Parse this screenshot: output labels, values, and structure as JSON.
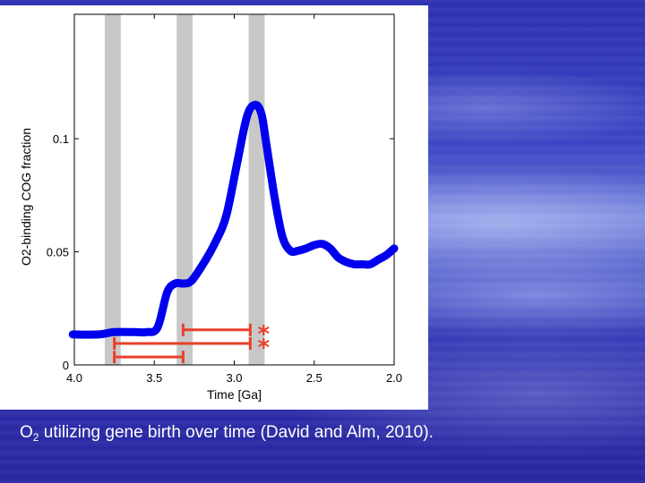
{
  "caption": {
    "prefix": "O",
    "subscript": "2",
    "text": " utilizing gene birth over time (David and Alm, 2010)."
  },
  "chart_data": {
    "type": "line",
    "title": "",
    "xlabel": "Time [Ga]",
    "ylabel": "O2-binding COG fraction",
    "xlim": [
      4.0,
      2.0
    ],
    "ylim": [
      0,
      0.155
    ],
    "x_reversed": true,
    "grid": false,
    "xticks": [
      {
        "value": 4.0,
        "label": "4.0"
      },
      {
        "value": 3.5,
        "label": "3.5"
      },
      {
        "value": 3.0,
        "label": "3.0"
      },
      {
        "value": 2.5,
        "label": "2.5"
      },
      {
        "value": 2.0,
        "label": "2.0"
      }
    ],
    "yticks": [
      {
        "value": 0,
        "label": "0"
      },
      {
        "value": 0.05,
        "label": "0.05"
      },
      {
        "value": 0.1,
        "label": "0.1"
      }
    ],
    "line_color": "#0000ee",
    "series": [
      {
        "x": [
          4.01,
          3.85,
          3.75,
          3.62,
          3.55,
          3.48,
          3.42,
          3.37,
          3.32,
          3.27,
          3.2,
          3.12,
          3.05,
          2.98,
          2.92,
          2.87,
          2.83,
          2.8,
          2.75,
          2.7,
          2.65,
          2.6,
          2.55,
          2.5,
          2.45,
          2.4,
          2.35,
          2.3,
          2.25,
          2.2,
          2.15,
          2.1,
          2.05,
          2.0
        ],
        "y": [
          0.0135,
          0.0135,
          0.0145,
          0.0145,
          0.0145,
          0.0165,
          0.032,
          0.036,
          0.036,
          0.037,
          0.044,
          0.054,
          0.066,
          0.09,
          0.11,
          0.115,
          0.111,
          0.098,
          0.075,
          0.057,
          0.0505,
          0.0505,
          0.0515,
          0.053,
          0.0535,
          0.0515,
          0.0475,
          0.0455,
          0.0445,
          0.0445,
          0.0445,
          0.0465,
          0.0485,
          0.0515
        ]
      }
    ],
    "shaded_bands": [
      {
        "x_from": 3.81,
        "x_to": 3.71
      },
      {
        "x_from": 3.36,
        "x_to": 3.26
      },
      {
        "x_from": 2.91,
        "x_to": 2.81
      }
    ],
    "band_color": "#c8c8c8",
    "intervals": [
      {
        "x_from": 3.32,
        "x_to": 2.9,
        "y": 0.0155,
        "marker": "*"
      },
      {
        "x_from": 3.75,
        "x_to": 2.9,
        "y": 0.0095,
        "marker": "*"
      },
      {
        "x_from": 3.75,
        "x_to": 3.32,
        "y": 0.0035,
        "marker": ""
      }
    ],
    "interval_color": "#e8402a"
  }
}
